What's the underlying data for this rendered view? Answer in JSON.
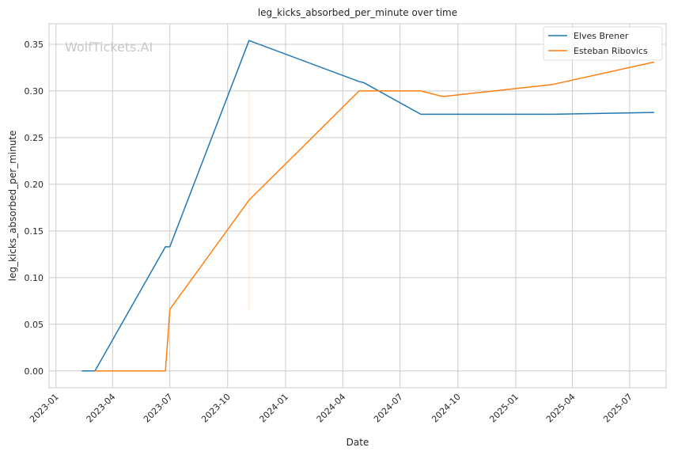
{
  "chart_data": {
    "type": "line",
    "title": "leg_kicks_absorbed_per_minute over time",
    "xlabel": "Date",
    "ylabel": "leg_kicks_absorbed_per_minute",
    "watermark": "WolfTickets.AI",
    "xlim": [
      "2022-12-21",
      "2025-08-28"
    ],
    "ylim": [
      -0.018,
      0.372
    ],
    "x_ticks": [
      "2023-01",
      "2023-04",
      "2023-07",
      "2023-10",
      "2024-01",
      "2024-04",
      "2024-07",
      "2024-10",
      "2025-01",
      "2025-04",
      "2025-07"
    ],
    "y_ticks": [
      "0.00",
      "0.05",
      "0.10",
      "0.15",
      "0.20",
      "0.25",
      "0.30",
      "0.35"
    ],
    "grid": true,
    "legend_position": "top-right",
    "series": [
      {
        "name": "Elves Brener",
        "color": "#1f77b4",
        "points": [
          [
            "2023-02-11",
            0.0
          ],
          [
            "2023-03-04",
            0.0
          ],
          [
            "2023-06-24",
            0.133
          ],
          [
            "2023-07-01",
            0.133
          ],
          [
            "2023-11-04",
            0.354
          ],
          [
            "2024-04-27",
            0.31
          ],
          [
            "2024-05-04",
            0.309
          ],
          [
            "2024-08-03",
            0.275
          ],
          [
            "2025-03-01",
            0.275
          ],
          [
            "2025-08-09",
            0.277
          ]
        ]
      },
      {
        "name": "Esteban Ribovics",
        "color": "#ff7f0e",
        "points": [
          [
            "2023-03-04",
            0.0
          ],
          [
            "2023-06-24",
            0.0
          ],
          [
            "2023-07-01",
            0.066
          ],
          [
            "2023-11-04",
            0.183
          ],
          [
            "2024-04-27",
            0.3
          ],
          [
            "2024-08-03",
            0.3
          ],
          [
            "2024-09-07",
            0.294
          ],
          [
            "2025-03-01",
            0.307
          ],
          [
            "2025-08-09",
            0.331
          ]
        ]
      }
    ],
    "annotations": [
      {
        "type": "faint-vertical-line",
        "date": "2023-11-04",
        "y_from": 0.066,
        "y_to": 0.3,
        "color": "#ff7f0e"
      }
    ]
  }
}
